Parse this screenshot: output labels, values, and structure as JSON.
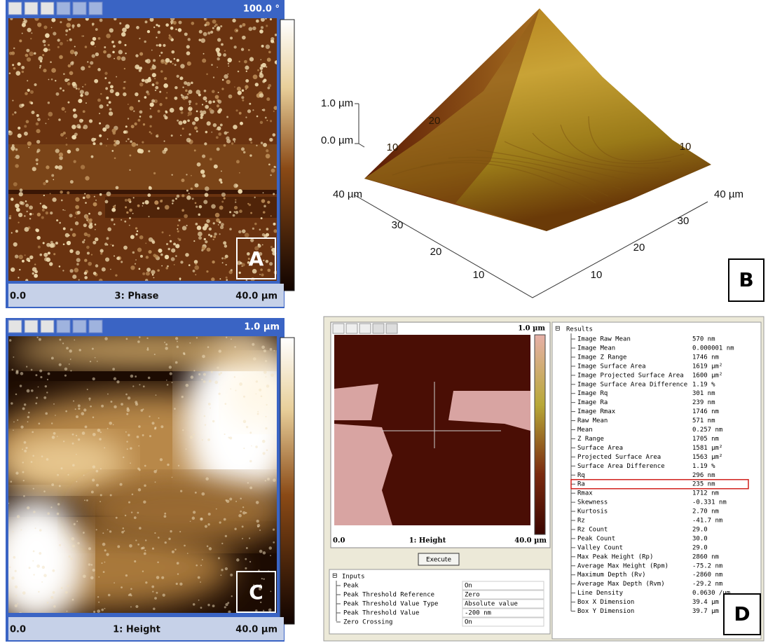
{
  "panel_a": {
    "label": "A",
    "scale_max": "100.0 °",
    "axis_start": "0.0",
    "channel": "3: Phase",
    "axis_end": "40.0 µm"
  },
  "panel_b": {
    "label": "B",
    "z_ticks": [
      "1.0 µm",
      "0.0 µm"
    ],
    "left_axis": [
      "40 µm",
      "30",
      "20",
      "10"
    ],
    "right_axis": [
      "40 µm",
      "30",
      "20",
      "10"
    ],
    "surface_labels": [
      "20",
      "10",
      "10"
    ]
  },
  "panel_c": {
    "label": "C",
    "scale_max": "1.0 µm",
    "axis_start": "0.0",
    "channel": "1: Height",
    "axis_end": "40.0 µm"
  },
  "panel_d": {
    "label": "D",
    "scale_max": "1.0 µm",
    "axis_start": "0.0",
    "channel": "1: Height",
    "axis_end": "40.0 µm",
    "button": "Execute",
    "inputs": {
      "title": "Inputs",
      "rows": [
        [
          "Peak",
          "On"
        ],
        [
          "Peak Threshold Reference",
          "Zero"
        ],
        [
          "Peak Threshold Value Type",
          "Absolute value"
        ],
        [
          "Peak Threshold Value",
          "-200 nm"
        ],
        [
          "Zero Crossing",
          "On"
        ]
      ]
    },
    "results": {
      "title": "Results",
      "rows": [
        [
          "Image Raw Mean",
          "570 nm"
        ],
        [
          "Image Mean",
          "0.000001 nm"
        ],
        [
          "Image Z Range",
          "1746 nm"
        ],
        [
          "Image Surface Area",
          "1619 µm²"
        ],
        [
          "Image Projected Surface Area",
          "1600 µm²"
        ],
        [
          "Image Surface Area Difference",
          "1.19 %"
        ],
        [
          "Image Rq",
          "301 nm"
        ],
        [
          "Image Ra",
          "239 nm"
        ],
        [
          "Image Rmax",
          "1746 nm"
        ],
        [
          "Raw Mean",
          "571 nm"
        ],
        [
          "Mean",
          "0.257 nm"
        ],
        [
          "Z Range",
          "1705 nm"
        ],
        [
          "Surface Area",
          "1581 µm²"
        ],
        [
          "Projected Surface Area",
          "1563 µm²"
        ],
        [
          "Surface Area Difference",
          "1.19 %"
        ],
        [
          "Rq",
          "296 nm"
        ],
        [
          "Ra",
          "235 nm"
        ],
        [
          "Rmax",
          "1712 nm"
        ],
        [
          "Skewness",
          "-0.331 nm"
        ],
        [
          "Kurtosis",
          "2.70 nm"
        ],
        [
          "Rz",
          "-41.7 nm"
        ],
        [
          "Rz Count",
          "29.0"
        ],
        [
          "Peak Count",
          "30.0"
        ],
        [
          "Valley Count",
          "29.0"
        ],
        [
          "Max Peak Height (Rp)",
          "2860 nm"
        ],
        [
          "Average Max Height (Rpm)",
          "-75.2 nm"
        ],
        [
          "Maximum Depth (Rv)",
          "-2860 nm"
        ],
        [
          "Average Max Depth (Rvm)",
          "-29.2 nm"
        ],
        [
          "Line Density",
          "0.0630 /µm"
        ],
        [
          "Box X Dimension",
          "39.4 µm"
        ],
        [
          "Box Y Dimension",
          "39.7 µm"
        ]
      ]
    }
  }
}
